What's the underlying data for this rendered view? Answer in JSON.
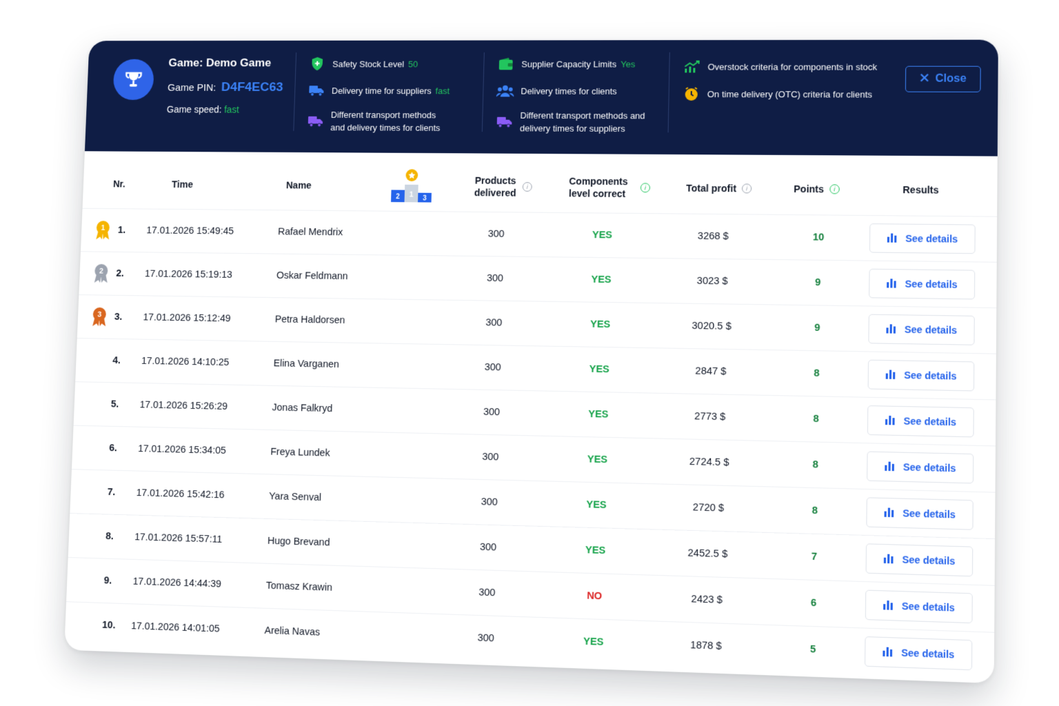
{
  "header": {
    "game_label": "Game: Demo Game",
    "pin_label": "Game PIN:",
    "pin_value": "D4F4EC63",
    "speed_label": "Game speed:",
    "speed_value": "fast",
    "close_label": "Close",
    "criteria_col1": [
      {
        "icon": "shield-icon",
        "label": "Safety Stock Level",
        "value": "50"
      },
      {
        "icon": "truck-icon",
        "label": "Delivery time for suppliers",
        "value": "fast"
      },
      {
        "icon": "truck-icon",
        "label": "Different transport methods and delivery times for clients",
        "value": ""
      }
    ],
    "criteria_col2": [
      {
        "icon": "wallet-icon",
        "label": "Supplier Capacity Limits",
        "value": "Yes"
      },
      {
        "icon": "users-icon",
        "label": "Delivery times for clients",
        "value": ""
      },
      {
        "icon": "truck-icon",
        "label": "Different transport methods and delivery times for suppliers",
        "value": ""
      }
    ],
    "criteria_col3": [
      {
        "icon": "trend-chart-icon",
        "label": "Overstock criteria for components in stock",
        "value": ""
      },
      {
        "icon": "clock-icon",
        "label": "On time delivery (OTC) criteria for clients",
        "value": ""
      }
    ]
  },
  "table": {
    "headers": {
      "nr": "Nr.",
      "time": "Time",
      "name": "Name",
      "podium_numbers": [
        "1",
        "2",
        "3"
      ],
      "products": "Products delivered",
      "components": "Components level correct",
      "profit": "Total profit",
      "points": "Points",
      "results": "Results"
    },
    "rows": [
      {
        "nr": "1.",
        "time": "17.01.2026 15:49:45",
        "name": "Rafael Mendrix",
        "products": "300",
        "components": "YES",
        "profit": "3268 $",
        "points": "10",
        "medal": "1"
      },
      {
        "nr": "2.",
        "time": "17.01.2026 15:19:13",
        "name": "Oskar Feldmann",
        "products": "300",
        "components": "YES",
        "profit": "3023 $",
        "points": "9",
        "medal": "2"
      },
      {
        "nr": "3.",
        "time": "17.01.2026 15:12:49",
        "name": "Petra Haldorsen",
        "products": "300",
        "components": "YES",
        "profit": "3020.5 $",
        "points": "9",
        "medal": "3"
      },
      {
        "nr": "4.",
        "time": "17.01.2026 14:10:25",
        "name": "Elina Varganen",
        "products": "300",
        "components": "YES",
        "profit": "2847 $",
        "points": "8",
        "medal": ""
      },
      {
        "nr": "5.",
        "time": "17.01.2026 15:26:29",
        "name": "Jonas Falkryd",
        "products": "300",
        "components": "YES",
        "profit": "2773 $",
        "points": "8",
        "medal": ""
      },
      {
        "nr": "6.",
        "time": "17.01.2026 15:34:05",
        "name": "Freya Lundek",
        "products": "300",
        "components": "YES",
        "profit": "2724.5 $",
        "points": "8",
        "medal": ""
      },
      {
        "nr": "7.",
        "time": "17.01.2026 15:42:16",
        "name": "Yara Senval",
        "products": "300",
        "components": "YES",
        "profit": "2720 $",
        "points": "8",
        "medal": ""
      },
      {
        "nr": "8.",
        "time": "17.01.2026 15:57:11",
        "name": "Hugo Brevand",
        "products": "300",
        "components": "YES",
        "profit": "2452.5 $",
        "points": "7",
        "medal": ""
      },
      {
        "nr": "9.",
        "time": "17.01.2026 14:44:39",
        "name": "Tomasz Krawin",
        "products": "300",
        "components": "NO",
        "profit": "2423 $",
        "points": "6",
        "medal": ""
      },
      {
        "nr": "10.",
        "time": "17.01.2026 14:01:05",
        "name": "Arelia Navas",
        "products": "300",
        "components": "YES",
        "profit": "1878 $",
        "points": "5",
        "medal": ""
      }
    ],
    "details_label": "See details"
  },
  "colors": {
    "header_bg": "#0f1d45",
    "accent_blue": "#2563eb",
    "yes_green": "#16a34a",
    "no_red": "#dc2626",
    "gold": "#f5b400",
    "silver": "#9ca3af",
    "bronze": "#d9661f"
  }
}
